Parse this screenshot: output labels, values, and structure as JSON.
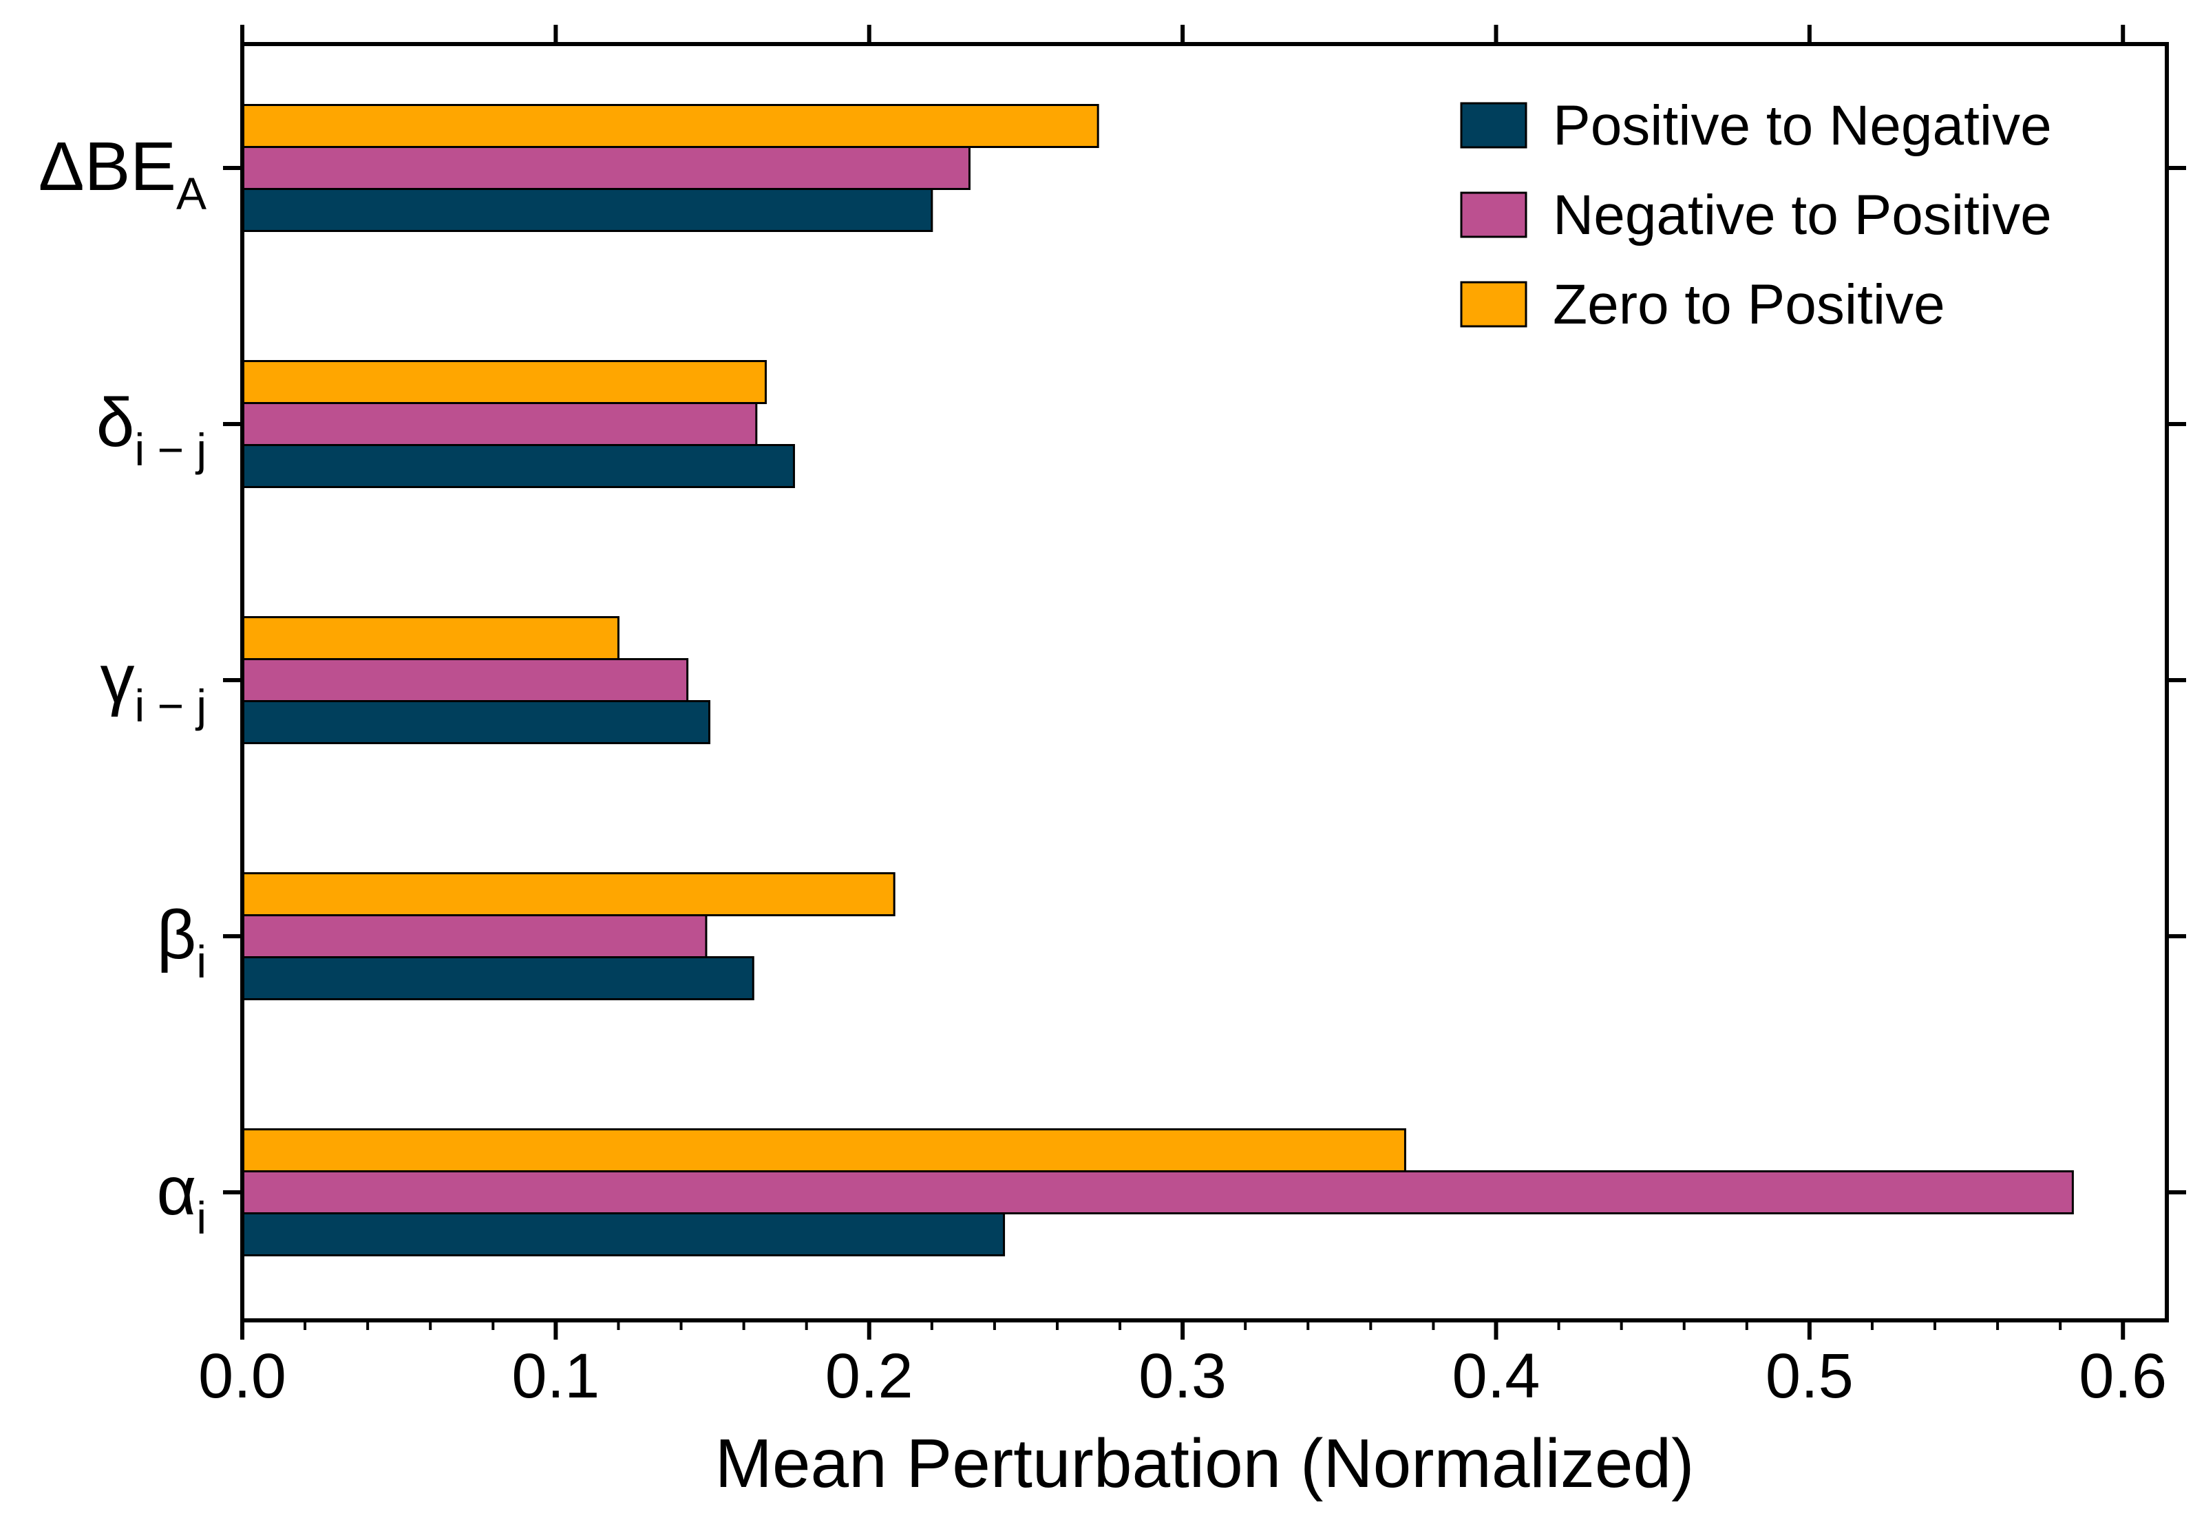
{
  "chart_data": {
    "type": "bar",
    "orientation": "horizontal",
    "categories": [
      {
        "base": "α",
        "sub": "i"
      },
      {
        "base": "β",
        "sub": "i"
      },
      {
        "base": "γ",
        "sub": "i − j"
      },
      {
        "base": "δ",
        "sub": "i − j"
      },
      {
        "base": "ΔBE",
        "sub": "A"
      }
    ],
    "series": [
      {
        "name": "Positive to Negative",
        "color": "#003f5c",
        "values": [
          0.243,
          0.163,
          0.149,
          0.176,
          0.22
        ]
      },
      {
        "name": "Negative to Positive",
        "color": "#bc5090",
        "values": [
          0.584,
          0.148,
          0.142,
          0.164,
          0.232
        ]
      },
      {
        "name": "Zero to Positive",
        "color": "#ffa600",
        "values": [
          0.371,
          0.208,
          0.12,
          0.167,
          0.273
        ]
      }
    ],
    "xlabel": "Mean Perturbation (Normalized)",
    "ylabel": "",
    "xlim": [
      0,
      0.614
    ],
    "xticks": [
      "0.0",
      "0.1",
      "0.2",
      "0.3",
      "0.4",
      "0.5",
      "0.6"
    ],
    "xtick_values": [
      0,
      0.1,
      0.2,
      0.3,
      0.4,
      0.5,
      0.6
    ],
    "minor_tick_step": 0.02,
    "grid": false,
    "legend_position": "top-right"
  }
}
